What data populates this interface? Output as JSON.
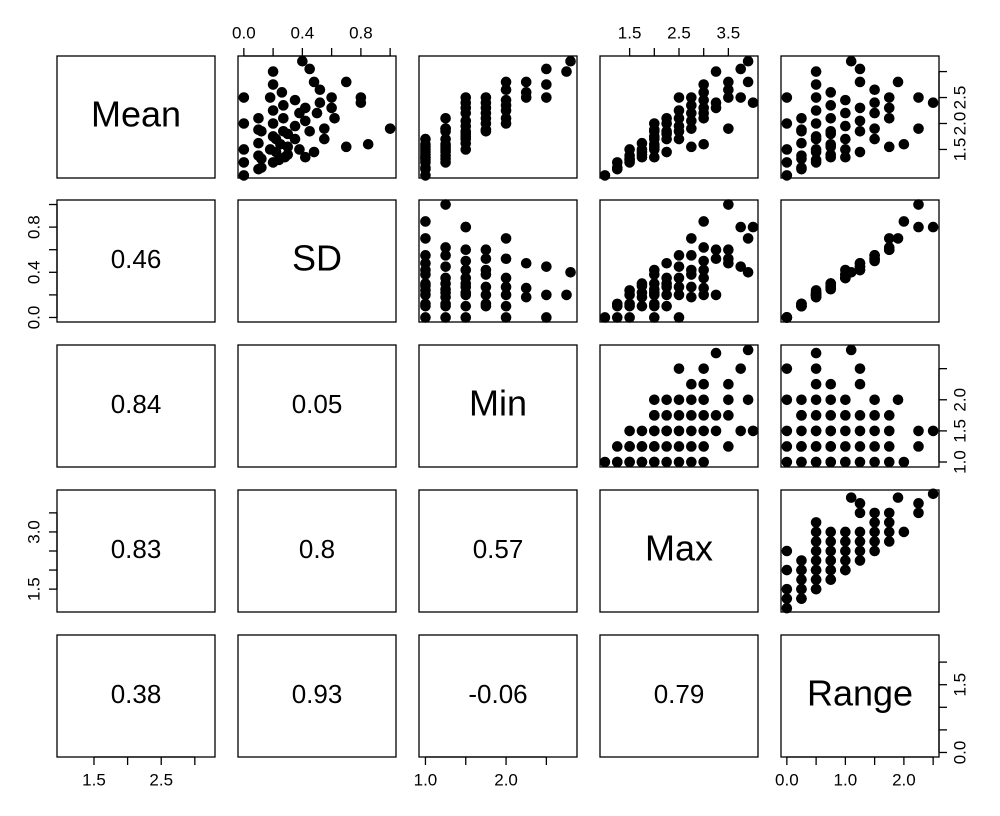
{
  "chart_data": {
    "type": "scatter_matrix",
    "color": "#000000",
    "variables": [
      {
        "name": "Mean",
        "lim": [
          0.95,
          3.3
        ]
      },
      {
        "name": "SD",
        "lim": [
          -0.04,
          1.04
        ]
      },
      {
        "name": "Min",
        "lim": [
          0.92,
          2.88
        ]
      },
      {
        "name": "Max",
        "lim": [
          0.9,
          4.1
        ]
      },
      {
        "name": "Range",
        "lim": [
          -0.1,
          2.6
        ]
      }
    ],
    "axes": [
      {
        "variable": 0,
        "side": "right",
        "ticks": [
          1.5,
          {
            "value": 2,
            "label": "2.0"
          },
          2.5,
          {
            "value": 3,
            "label": null
          }
        ]
      },
      {
        "variable": 0,
        "side": "bottom",
        "ticks": [
          1.5,
          {
            "value": 2,
            "label": null
          },
          2.5,
          {
            "value": 3,
            "label": null
          }
        ]
      },
      {
        "variable": 1,
        "side": "top",
        "ticks": [
          {
            "value": 0,
            "label": "0.0"
          },
          {
            "value": 0.2,
            "label": null
          },
          0.4,
          {
            "value": 0.6,
            "label": null
          },
          0.8,
          {
            "value": 1,
            "label": null
          }
        ]
      },
      {
        "variable": 1,
        "side": "left",
        "ticks": [
          {
            "value": 0,
            "label": "0.0"
          },
          {
            "value": 0.2,
            "label": null
          },
          0.4,
          {
            "value": 0.6,
            "label": null
          },
          0.8,
          {
            "value": 1,
            "label": null
          }
        ]
      },
      {
        "variable": 2,
        "side": "bottom",
        "ticks": [
          {
            "value": 1,
            "label": "1.0"
          },
          {
            "value": 1.5,
            "label": null
          },
          {
            "value": 2,
            "label": "2.0"
          },
          {
            "value": 2.5,
            "label": null
          }
        ]
      },
      {
        "variable": 2,
        "side": "right",
        "ticks": [
          {
            "value": 1,
            "label": "1.0"
          },
          1.5,
          {
            "value": 2,
            "label": "2.0"
          },
          {
            "value": 2.5,
            "label": null
          }
        ]
      },
      {
        "variable": 3,
        "side": "top",
        "ticks": [
          1.5,
          {
            "value": 2,
            "label": null
          },
          2.5,
          {
            "value": 3,
            "label": null
          },
          3.5
        ]
      },
      {
        "variable": 3,
        "side": "left",
        "ticks": [
          1.5,
          {
            "value": 2,
            "label": null
          },
          {
            "value": 2.5,
            "label": null
          },
          {
            "value": 3,
            "label": "3.0"
          },
          {
            "value": 3.5,
            "label": null
          }
        ]
      },
      {
        "variable": 4,
        "side": "right",
        "ticks": [
          {
            "value": 0,
            "label": "0.0"
          },
          {
            "value": 0.5,
            "label": null
          },
          {
            "value": 1,
            "label": null
          },
          1.5,
          {
            "value": 2,
            "label": null
          }
        ]
      },
      {
        "variable": 4,
        "side": "bottom",
        "ticks": [
          {
            "value": 0,
            "label": "0.0"
          },
          {
            "value": 0.5,
            "label": null
          },
          {
            "value": 1,
            "label": "1.0"
          },
          {
            "value": 1.5,
            "label": null
          },
          {
            "value": 2,
            "label": "2.0"
          },
          {
            "value": 2.5,
            "label": null
          }
        ]
      }
    ],
    "correlations": [
      [
        0.46
      ],
      [
        0.84,
        0.05
      ],
      [
        0.83,
        0.8,
        0.57
      ],
      [
        0.38,
        0.93,
        -0.06,
        0.79
      ]
    ],
    "observations": [
      [
        1.12,
        0.1,
        1.0,
        1.25,
        0.25
      ],
      [
        1.25,
        0.2,
        1.0,
        1.5,
        0.5
      ],
      [
        1.35,
        0.28,
        1.0,
        1.75,
        0.75
      ],
      [
        1.5,
        0.38,
        1.0,
        2.0,
        1.0
      ],
      [
        1.7,
        0.55,
        1.0,
        2.5,
        1.5
      ],
      [
        1.38,
        0.1,
        1.25,
        1.5,
        0.25
      ],
      [
        1.5,
        0.18,
        1.25,
        1.75,
        0.5
      ],
      [
        1.6,
        0.25,
        1.25,
        2.0,
        0.75
      ],
      [
        1.7,
        0.35,
        1.25,
        2.25,
        1.0
      ],
      [
        1.85,
        0.45,
        1.25,
        2.5,
        1.25
      ],
      [
        2.1,
        0.62,
        1.25,
        3.0,
        1.75
      ],
      [
        1.5,
        0,
        1.5,
        1.5,
        0
      ],
      [
        1.62,
        0.1,
        1.5,
        1.75,
        0.25
      ],
      [
        1.75,
        0.2,
        1.5,
        2.0,
        0.5
      ],
      [
        1.85,
        0.27,
        1.5,
        2.25,
        0.75
      ],
      [
        1.95,
        0.35,
        1.5,
        2.5,
        1.0
      ],
      [
        2.05,
        0.42,
        1.5,
        2.75,
        1.25
      ],
      [
        2.2,
        0.5,
        1.5,
        3.0,
        1.5
      ],
      [
        2.5,
        0.8,
        1.5,
        3.75,
        2.25
      ],
      [
        1.88,
        0.1,
        1.75,
        2.0,
        0.25
      ],
      [
        2.0,
        0.2,
        1.75,
        2.25,
        0.5
      ],
      [
        2.1,
        0.27,
        1.75,
        2.5,
        0.75
      ],
      [
        2.3,
        0.42,
        1.75,
        3.0,
        1.25
      ],
      [
        2.5,
        0.6,
        1.75,
        3.5,
        1.75
      ],
      [
        2.0,
        0,
        2.0,
        2.0,
        0
      ],
      [
        2.25,
        0.2,
        2.0,
        2.5,
        0.5
      ],
      [
        2.45,
        0.35,
        2.0,
        3.0,
        1.0
      ],
      [
        2.65,
        0.52,
        2.0,
        3.5,
        1.5
      ],
      [
        2.8,
        0.7,
        2.0,
        3.9,
        1.9
      ],
      [
        2.5,
        0.18,
        2.25,
        2.75,
        0.5
      ],
      [
        2.6,
        0.26,
        2.25,
        3.0,
        0.75
      ],
      [
        2.75,
        0.2,
        2.5,
        3.0,
        0.5
      ],
      [
        3.05,
        0.45,
        2.5,
        3.75,
        1.25
      ],
      [
        3.0,
        0.2,
        2.75,
        3.25,
        0.5
      ],
      [
        3.2,
        0.4,
        2.8,
        3.9,
        1.1
      ],
      [
        1.0,
        0,
        1.0,
        1.0,
        0
      ],
      [
        1.25,
        0,
        1.25,
        1.25,
        0
      ],
      [
        1.45,
        0.48,
        1.0,
        2.25,
        1.25
      ],
      [
        1.6,
        0.85,
        1.0,
        3.0,
        2.0
      ],
      [
        1.9,
        1.0,
        1.25,
        3.5,
        2.25
      ],
      [
        2.4,
        0.8,
        1.5,
        4.0,
        2.5
      ],
      [
        1.3,
        0.24,
        1.0,
        1.5,
        0.5
      ],
      [
        1.45,
        0.22,
        1.25,
        1.75,
        0.5
      ],
      [
        1.7,
        0.22,
        1.5,
        2.0,
        0.5
      ],
      [
        1.55,
        0.3,
        1.25,
        2.0,
        0.75
      ],
      [
        1.8,
        0.3,
        1.5,
        2.25,
        0.75
      ],
      [
        1.4,
        0.3,
        1.0,
        1.75,
        0.75
      ],
      [
        2.2,
        0.38,
        1.75,
        2.75,
        1.0
      ],
      [
        1.9,
        0.55,
        1.25,
        2.75,
        1.5
      ],
      [
        1.35,
        0.42,
        1.0,
        2.0,
        1.0
      ],
      [
        2.35,
        0.27,
        2.0,
        2.75,
        0.75
      ],
      [
        2.3,
        0.6,
        1.5,
        3.25,
        1.75
      ],
      [
        1.85,
        0.12,
        1.75,
        2.0,
        0.25
      ],
      [
        1.15,
        0.12,
        1.0,
        1.25,
        0.25
      ],
      [
        1.32,
        0.12,
        1.25,
        1.5,
        0.25
      ],
      [
        2.5,
        0,
        2.5,
        2.5,
        0
      ],
      [
        2.8,
        0.48,
        2.25,
        3.5,
        1.25
      ],
      [
        1.55,
        0.7,
        1.0,
        2.75,
        1.75
      ],
      [
        2.4,
        0.52,
        1.75,
        3.25,
        1.5
      ],
      [
        2.1,
        0.1,
        2.0,
        2.25,
        0.25
      ]
    ]
  }
}
